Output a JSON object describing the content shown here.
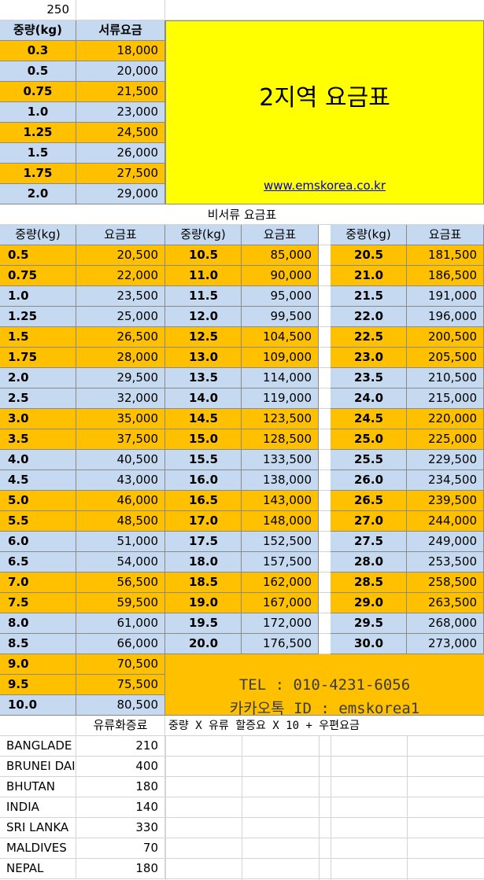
{
  "top_cell": "250",
  "document_table": {
    "header_weight": "중량(kg)",
    "header_rate": "서류요금",
    "rows": [
      {
        "w": "0.3",
        "p": "18,000"
      },
      {
        "w": "0.5",
        "p": "20,000"
      },
      {
        "w": "0.75",
        "p": "21,500"
      },
      {
        "w": "1.0",
        "p": "23,000"
      },
      {
        "w": "1.25",
        "p": "24,500"
      },
      {
        "w": "1.5",
        "p": "26,000"
      },
      {
        "w": "1.75",
        "p": "27,500"
      },
      {
        "w": "2.0",
        "p": "29,000"
      }
    ]
  },
  "banner": {
    "title": "2지역 요금표",
    "link": "www.emskorea.co.kr",
    "color": "#ffff00"
  },
  "non_document_title": "비서류 요금표",
  "non_document_tables": [
    {
      "header_weight": "중량(kg)",
      "header_rate": "요금표",
      "rows": [
        {
          "w": "0.5",
          "p": "20,500"
        },
        {
          "w": "0.75",
          "p": "22,000"
        },
        {
          "w": "1.0",
          "p": "23,500"
        },
        {
          "w": "1.25",
          "p": "25,000"
        },
        {
          "w": "1.5",
          "p": "26,500"
        },
        {
          "w": "1.75",
          "p": "28,000"
        },
        {
          "w": "2.0",
          "p": "29,500"
        },
        {
          "w": "2.5",
          "p": "32,000"
        },
        {
          "w": "3.0",
          "p": "35,000"
        },
        {
          "w": "3.5",
          "p": "37,500"
        },
        {
          "w": "4.0",
          "p": "40,500"
        },
        {
          "w": "4.5",
          "p": "43,000"
        },
        {
          "w": "5.0",
          "p": "46,000"
        },
        {
          "w": "5.5",
          "p": "48,500"
        },
        {
          "w": "6.0",
          "p": "51,000"
        },
        {
          "w": "6.5",
          "p": "54,000"
        },
        {
          "w": "7.0",
          "p": "56,500"
        },
        {
          "w": "7.5",
          "p": "59,500"
        },
        {
          "w": "8.0",
          "p": "61,000"
        },
        {
          "w": "8.5",
          "p": "66,000"
        },
        {
          "w": "9.0",
          "p": "70,500"
        },
        {
          "w": "9.5",
          "p": "75,500"
        },
        {
          "w": "10.0",
          "p": "80,500"
        }
      ]
    },
    {
      "header_weight": "중량(kg)",
      "header_rate": "요금표",
      "rows": [
        {
          "w": "10.5",
          "p": "85,000"
        },
        {
          "w": "11.0",
          "p": "90,000"
        },
        {
          "w": "11.5",
          "p": "95,000"
        },
        {
          "w": "12.0",
          "p": "99,500"
        },
        {
          "w": "12.5",
          "p": "104,500"
        },
        {
          "w": "13.0",
          "p": "109,000"
        },
        {
          "w": "13.5",
          "p": "114,000"
        },
        {
          "w": "14.0",
          "p": "119,000"
        },
        {
          "w": "14.5",
          "p": "123,500"
        },
        {
          "w": "15.0",
          "p": "128,500"
        },
        {
          "w": "15.5",
          "p": "133,500"
        },
        {
          "w": "16.0",
          "p": "138,000"
        },
        {
          "w": "16.5",
          "p": "143,000"
        },
        {
          "w": "17.0",
          "p": "148,000"
        },
        {
          "w": "17.5",
          "p": "152,500"
        },
        {
          "w": "18.0",
          "p": "157,500"
        },
        {
          "w": "18.5",
          "p": "162,000"
        },
        {
          "w": "19.0",
          "p": "167,000"
        },
        {
          "w": "19.5",
          "p": "172,000"
        },
        {
          "w": "20.0",
          "p": "176,500"
        }
      ]
    },
    {
      "header_weight": "중량(kg)",
      "header_rate": "요금표",
      "rows": [
        {
          "w": "20.5",
          "p": "181,500"
        },
        {
          "w": "21.0",
          "p": "186,500"
        },
        {
          "w": "21.5",
          "p": "191,000"
        },
        {
          "w": "22.0",
          "p": "196,000"
        },
        {
          "w": "22.5",
          "p": "200,500"
        },
        {
          "w": "23.0",
          "p": "205,500"
        },
        {
          "w": "23.5",
          "p": "210,500"
        },
        {
          "w": "24.0",
          "p": "215,000"
        },
        {
          "w": "24.5",
          "p": "220,000"
        },
        {
          "w": "25.0",
          "p": "225,000"
        },
        {
          "w": "25.5",
          "p": "229,500"
        },
        {
          "w": "26.0",
          "p": "234,500"
        },
        {
          "w": "26.5",
          "p": "239,500"
        },
        {
          "w": "27.0",
          "p": "244,000"
        },
        {
          "w": "27.5",
          "p": "249,000"
        },
        {
          "w": "28.0",
          "p": "253,500"
        },
        {
          "w": "28.5",
          "p": "258,500"
        },
        {
          "w": "29.0",
          "p": "263,500"
        },
        {
          "w": "29.5",
          "p": "268,000"
        },
        {
          "w": "30.0",
          "p": "273,000"
        }
      ]
    }
  ],
  "contact": {
    "tel": "TEL : 010-4231-6056",
    "kakao": "카카오톡 ID : emskorea1"
  },
  "surcharge": {
    "header": "유류화증료",
    "formula": "중량 X 유류 할증요 X 10 + 우편요금",
    "rows": [
      {
        "country": "BANGLADE",
        "value": "210"
      },
      {
        "country": "BRUNEI DAI",
        "value": "400"
      },
      {
        "country": "BHUTAN",
        "value": "180"
      },
      {
        "country": "INDIA",
        "value": "140"
      },
      {
        "country": "SRI LANKA",
        "value": "330"
      },
      {
        "country": "MALDIVES",
        "value": "70"
      },
      {
        "country": "NEPAL",
        "value": "180"
      }
    ]
  },
  "colors": {
    "blue_row": "#c5d9f1",
    "orange_row": "#ffc000",
    "link": "#0000cc"
  }
}
